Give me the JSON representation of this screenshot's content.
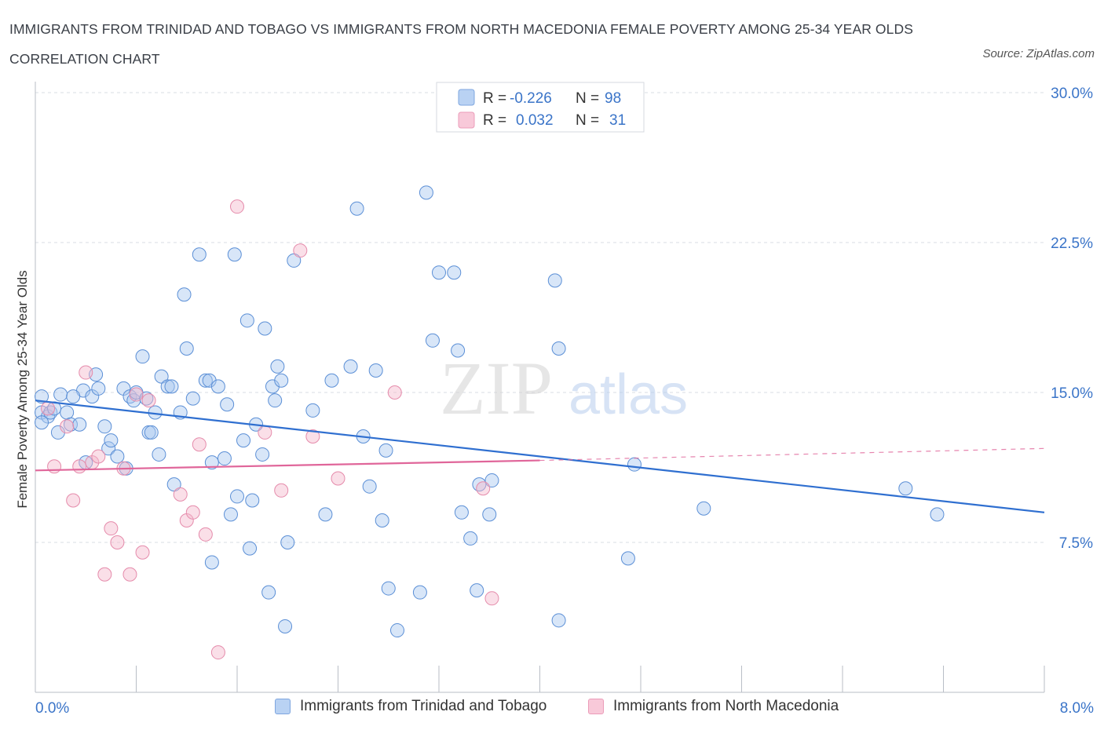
{
  "title": "IMMIGRANTS FROM TRINIDAD AND TOBAGO VS IMMIGRANTS FROM NORTH MACEDONIA FEMALE POVERTY AMONG 25-34 YEAR OLDS CORRELATION CHART",
  "source": "Source: ZipAtlas.com",
  "watermark": {
    "zip": "ZIP",
    "atlas": "atlas"
  },
  "colors": {
    "blue": "#2f6fd0",
    "blue_fill": "#a9c7f0",
    "blue_stroke": "#5b8fd6",
    "pink": "#e0669a",
    "pink_fill": "#f5b9cd",
    "pink_stroke": "#e58bab",
    "axis_label": "#3a74c8",
    "grid": "#d9dde3"
  },
  "stats_box": {
    "rows": [
      {
        "r_label": "R =",
        "r_value": "-0.226",
        "n_label": "N =",
        "n_value": "98"
      },
      {
        "r_label": "R =",
        "r_value": "0.032",
        "n_label": "N =",
        "n_value": "31"
      }
    ]
  },
  "legend": {
    "series1": "Immigrants from Trinidad and Tobago",
    "series2": "Immigrants from North Macedonia"
  },
  "chart_data": {
    "type": "scatter",
    "title": "IMMIGRANTS FROM TRINIDAD AND TOBAGO VS IMMIGRANTS FROM NORTH MACEDONIA FEMALE POVERTY AMONG 25-34 YEAR OLDS CORRELATION CHART",
    "xlabel": "",
    "ylabel": "Female Poverty Among 25-34 Year Olds",
    "xlim": [
      0,
      8
    ],
    "ylim": [
      0,
      30
    ],
    "x_tick_labels": [
      "0.0%",
      "8.0%"
    ],
    "y_ticks": [
      7.5,
      15.0,
      22.5,
      30.0
    ],
    "y_tick_labels": [
      "7.5%",
      "15.0%",
      "22.5%",
      "30.0%"
    ],
    "grid": true,
    "legend_position": "bottom",
    "series": [
      {
        "name": "Immigrants from Trinidad and Tobago",
        "R": -0.226,
        "N": 98,
        "trend": {
          "x0": 0.0,
          "y0": 14.6,
          "x1": 8.0,
          "y1": 9.0
        },
        "points": [
          [
            0.05,
            14.8
          ],
          [
            0.05,
            14.0
          ],
          [
            0.1,
            13.8
          ],
          [
            0.12,
            14.0
          ],
          [
            0.18,
            13.0
          ],
          [
            0.2,
            14.9
          ],
          [
            0.25,
            14.0
          ],
          [
            0.28,
            13.4
          ],
          [
            0.35,
            13.4
          ],
          [
            0.38,
            15.1
          ],
          [
            0.4,
            11.5
          ],
          [
            0.45,
            14.8
          ],
          [
            0.48,
            15.9
          ],
          [
            0.5,
            15.2
          ],
          [
            0.55,
            13.3
          ],
          [
            0.58,
            12.2
          ],
          [
            0.6,
            12.6
          ],
          [
            0.65,
            11.8
          ],
          [
            0.7,
            15.2
          ],
          [
            0.72,
            11.2
          ],
          [
            0.75,
            14.8
          ],
          [
            0.78,
            14.6
          ],
          [
            0.8,
            15.0
          ],
          [
            0.85,
            16.8
          ],
          [
            0.88,
            14.7
          ],
          [
            0.9,
            13.0
          ],
          [
            0.92,
            13.0
          ],
          [
            0.95,
            14.0
          ],
          [
            0.98,
            11.9
          ],
          [
            1.0,
            15.8
          ],
          [
            1.05,
            15.3
          ],
          [
            1.08,
            15.3
          ],
          [
            1.1,
            10.4
          ],
          [
            1.15,
            14.0
          ],
          [
            1.18,
            19.9
          ],
          [
            1.2,
            17.2
          ],
          [
            1.25,
            14.7
          ],
          [
            1.3,
            21.9
          ],
          [
            1.35,
            15.6
          ],
          [
            1.38,
            15.6
          ],
          [
            1.4,
            6.5
          ],
          [
            1.45,
            15.3
          ],
          [
            1.5,
            11.7
          ],
          [
            1.52,
            14.4
          ],
          [
            1.55,
            8.9
          ],
          [
            1.58,
            21.9
          ],
          [
            1.6,
            9.8
          ],
          [
            1.65,
            12.6
          ],
          [
            1.68,
            18.6
          ],
          [
            1.7,
            7.2
          ],
          [
            1.72,
            9.6
          ],
          [
            1.75,
            13.4
          ],
          [
            1.8,
            11.9
          ],
          [
            1.82,
            18.2
          ],
          [
            1.85,
            5.0
          ],
          [
            1.88,
            15.3
          ],
          [
            1.9,
            14.6
          ],
          [
            1.92,
            16.3
          ],
          [
            1.95,
            15.6
          ],
          [
            1.98,
            3.3
          ],
          [
            2.0,
            7.5
          ],
          [
            2.05,
            21.6
          ],
          [
            2.3,
            8.9
          ],
          [
            2.35,
            15.6
          ],
          [
            2.5,
            16.3
          ],
          [
            2.55,
            24.2
          ],
          [
            2.6,
            12.8
          ],
          [
            2.65,
            10.3
          ],
          [
            2.7,
            16.1
          ],
          [
            2.75,
            8.6
          ],
          [
            2.78,
            12.1
          ],
          [
            2.8,
            5.2
          ],
          [
            2.87,
            3.1
          ],
          [
            3.05,
            5.0
          ],
          [
            3.1,
            25.0
          ],
          [
            3.15,
            17.6
          ],
          [
            3.2,
            21.0
          ],
          [
            3.32,
            21.0
          ],
          [
            3.35,
            17.1
          ],
          [
            3.38,
            9.0
          ],
          [
            3.45,
            7.7
          ],
          [
            3.5,
            5.1
          ],
          [
            3.52,
            10.4
          ],
          [
            3.6,
            8.9
          ],
          [
            3.62,
            10.6
          ],
          [
            4.12,
            20.6
          ],
          [
            4.15,
            17.2
          ],
          [
            4.15,
            3.6
          ],
          [
            4.7,
            6.7
          ],
          [
            4.75,
            11.4
          ],
          [
            5.3,
            9.2
          ],
          [
            6.9,
            10.2
          ],
          [
            7.15,
            8.9
          ],
          [
            0.05,
            13.5
          ],
          [
            0.15,
            14.2
          ],
          [
            0.3,
            14.8
          ],
          [
            1.4,
            11.5
          ],
          [
            2.2,
            14.1
          ]
        ]
      },
      {
        "name": "Immigrants from North Macedonia",
        "R": 0.032,
        "N": 31,
        "trend": {
          "x0": 0.0,
          "y0": 11.1,
          "x1": 4.0,
          "y1": 11.6
        },
        "trend_dashed_to": {
          "x": 8.0,
          "y": 12.2
        },
        "points": [
          [
            0.1,
            14.2
          ],
          [
            0.15,
            11.3
          ],
          [
            0.25,
            13.3
          ],
          [
            0.3,
            9.6
          ],
          [
            0.35,
            11.3
          ],
          [
            0.4,
            16.0
          ],
          [
            0.45,
            11.5
          ],
          [
            0.5,
            11.8
          ],
          [
            0.55,
            5.9
          ],
          [
            0.6,
            8.2
          ],
          [
            0.65,
            7.5
          ],
          [
            0.7,
            11.2
          ],
          [
            0.75,
            5.9
          ],
          [
            0.8,
            14.9
          ],
          [
            0.85,
            7.0
          ],
          [
            0.9,
            14.6
          ],
          [
            1.15,
            9.9
          ],
          [
            1.2,
            8.6
          ],
          [
            1.25,
            9.0
          ],
          [
            1.3,
            12.4
          ],
          [
            1.35,
            7.9
          ],
          [
            1.45,
            2.0
          ],
          [
            1.6,
            24.3
          ],
          [
            1.82,
            13.0
          ],
          [
            1.95,
            10.1
          ],
          [
            2.1,
            22.1
          ],
          [
            2.2,
            12.8
          ],
          [
            2.4,
            10.7
          ],
          [
            2.85,
            15.0
          ],
          [
            3.55,
            10.2
          ],
          [
            3.62,
            4.7
          ]
        ]
      }
    ]
  }
}
